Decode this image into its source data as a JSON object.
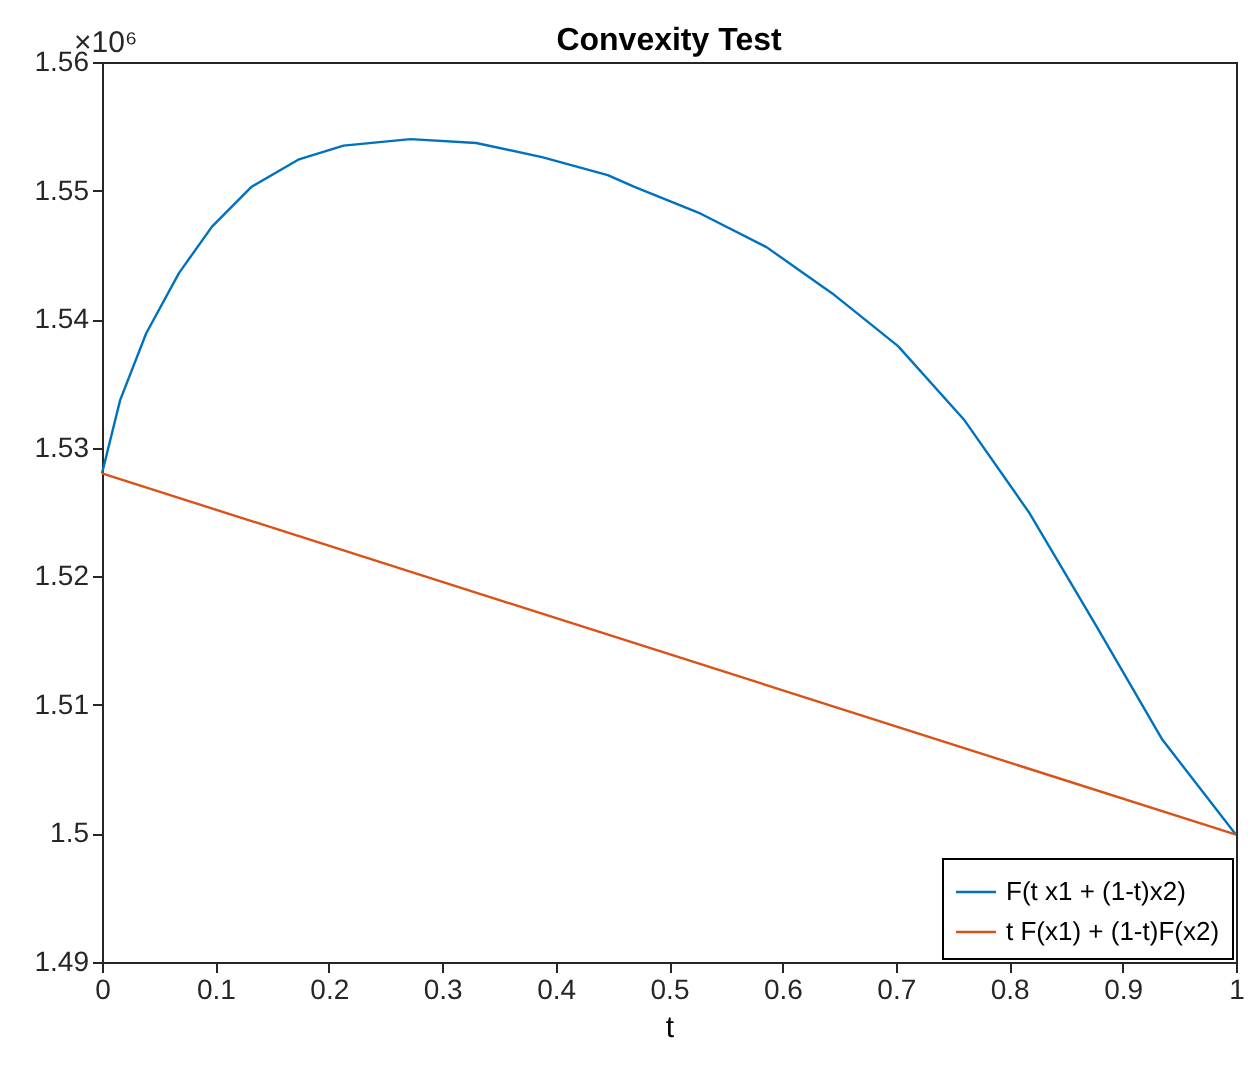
{
  "chart_data": {
    "type": "line",
    "title": "Convexity Test",
    "xlabel": "t",
    "annotations": [
      "×10⁶"
    ],
    "series": [
      {
        "name": "F(t x1 + (1-t)x2)",
        "color": "#0072bd",
        "x": [
          0,
          0.016,
          0.039,
          0.068,
          0.097,
          0.132,
          0.173,
          0.213,
          0.272,
          0.33,
          0.388,
          0.446,
          0.469,
          0.528,
          0.586,
          0.644,
          0.702,
          0.76,
          0.818,
          0.877,
          0.935,
          1
        ],
        "values": [
          1.528,
          1.5337,
          1.5389,
          1.5436,
          1.5472,
          1.5503,
          1.5524,
          1.5535,
          1.554,
          1.5537,
          1.5526,
          1.5512,
          1.5503,
          1.5482,
          1.5456,
          1.542,
          1.5379,
          1.5322,
          1.5249,
          1.5161,
          1.5073,
          1.4999
        ]
      },
      {
        "name": "t F(x1) + (1-t)F(x2)",
        "color": "#d95319",
        "x": [
          0,
          1
        ],
        "values": [
          1.528,
          1.4999
        ]
      }
    ],
    "xlim": [
      0,
      1
    ],
    "xticks": [
      0,
      0.1,
      0.2,
      0.3,
      0.4,
      0.5,
      0.6,
      0.7,
      0.8,
      0.9,
      1
    ],
    "ylim": [
      1.49,
      1.56
    ],
    "yticks": [
      1.49,
      1.5,
      1.51,
      1.52,
      1.53,
      1.54,
      1.55,
      1.56
    ],
    "grid": false,
    "legend": "bottom right",
    "marker": "none",
    "line_style": "solid"
  }
}
